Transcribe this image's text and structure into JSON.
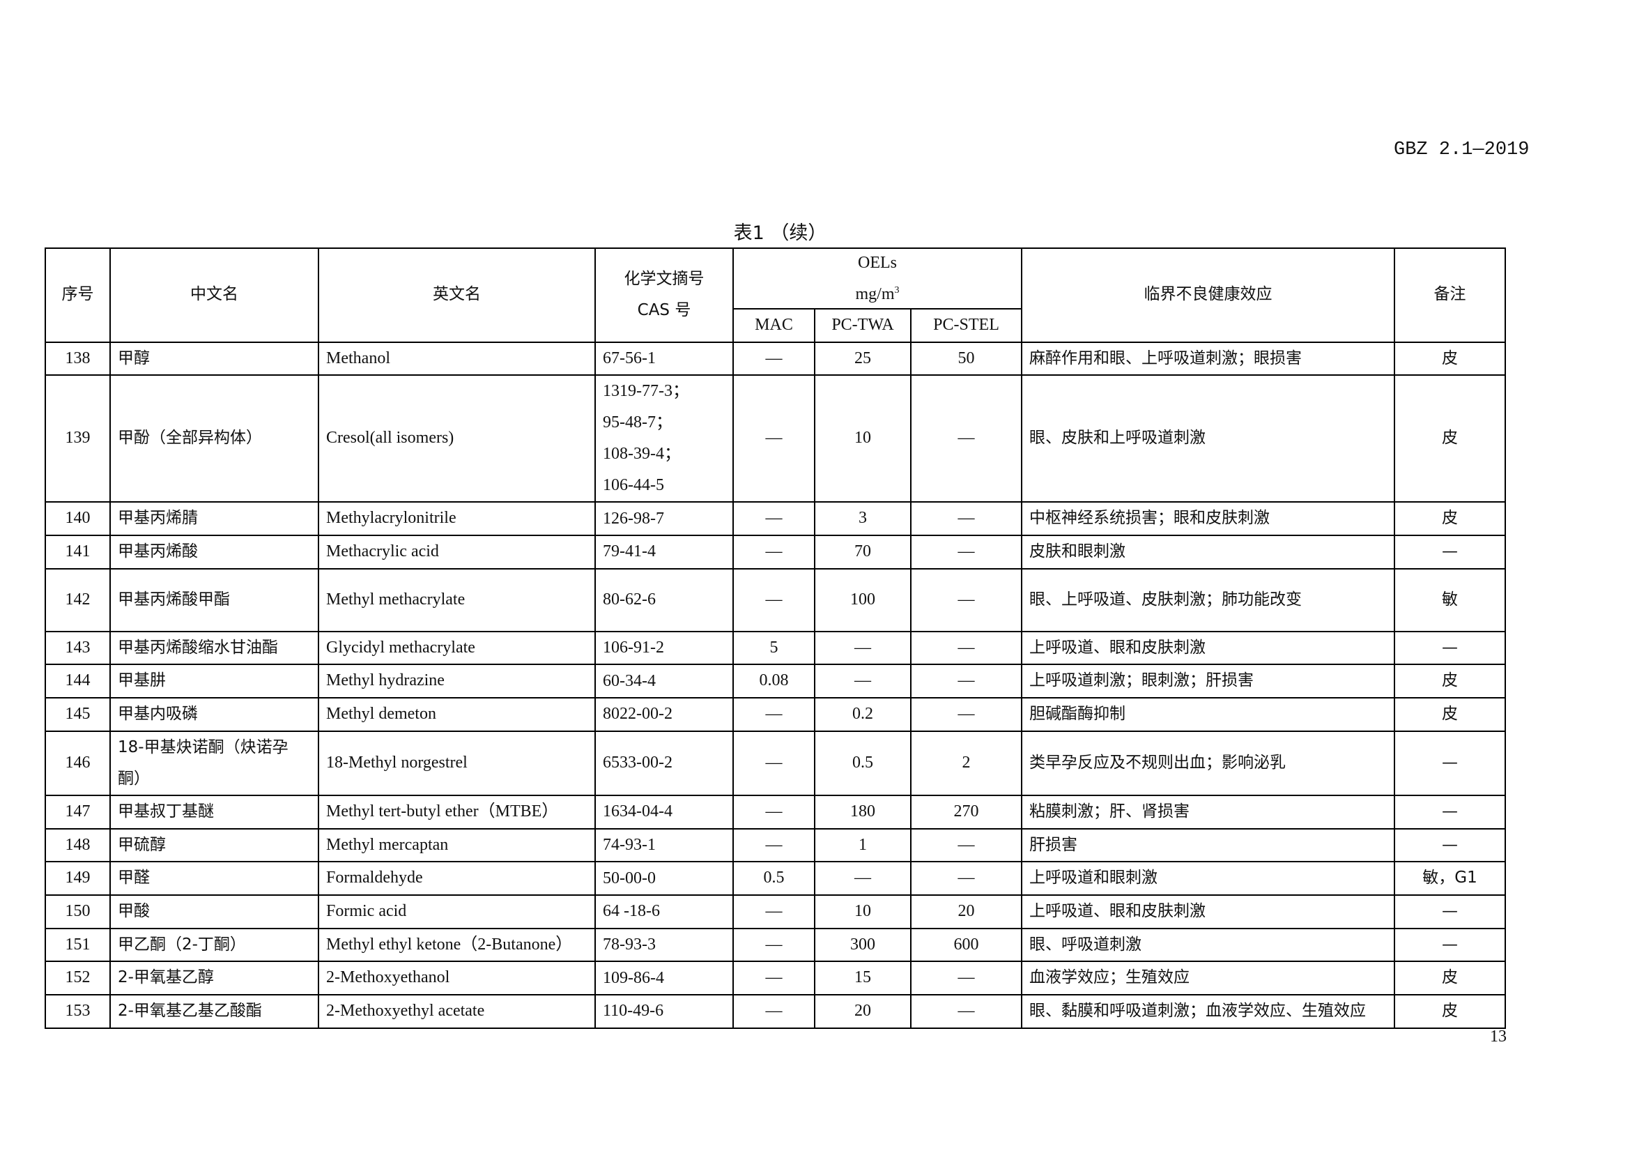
{
  "header": {
    "standard_code": "GBZ 2.1—2019"
  },
  "table_title": "表1 （续）",
  "columns": {
    "seq": "序号",
    "cn_name": "中文名",
    "en_name": "英文名",
    "cas_line1": "化学文摘号",
    "cas_line2": "CAS 号",
    "oels": "OELs",
    "unit_base": "mg/m",
    "unit_exp": "3",
    "mac": "MAC",
    "pc_twa": "PC-TWA",
    "pc_stel": "PC-STEL",
    "effect": "临界不良健康效应",
    "remark": "备注"
  },
  "rows": [
    {
      "seq": "138",
      "cn": "甲醇",
      "en": "Methanol",
      "cas": [
        "67-56-1"
      ],
      "mac": "—",
      "twa": "25",
      "stel": "50",
      "effect": "麻醉作用和眼、上呼吸道刺激；眼损害",
      "remark": "皮"
    },
    {
      "seq": "139",
      "cn": "甲酚（全部异构体）",
      "en": "Cresol(all isomers)",
      "cas": [
        "1319-77-3；",
        "95-48-7；",
        "108-39-4；",
        "106-44-5"
      ],
      "mac": "—",
      "twa": "10",
      "stel": "—",
      "effect": "眼、皮肤和上呼吸道刺激",
      "remark": "皮"
    },
    {
      "seq": "140",
      "cn": "甲基丙烯腈",
      "en": "Methylacrylonitrile",
      "cas": [
        "126-98-7"
      ],
      "mac": "—",
      "twa": "3",
      "stel": "—",
      "effect": "中枢神经系统损害；眼和皮肤刺激",
      "remark": "皮"
    },
    {
      "seq": "141",
      "cn": "甲基丙烯酸",
      "en": "Methacrylic acid",
      "cas": [
        "79-41-4"
      ],
      "mac": "—",
      "twa": "70",
      "stel": "—",
      "effect": "皮肤和眼刺激",
      "remark": "—"
    },
    {
      "seq": "142",
      "cn": "甲基丙烯酸甲酯",
      "en": "Methyl methacrylate",
      "cas": [
        "80-62-6"
      ],
      "mac": "—",
      "twa": "100",
      "stel": "—",
      "effect": "眼、上呼吸道、皮肤刺激；肺功能改变",
      "remark": "敏"
    },
    {
      "seq": "143",
      "cn": "甲基丙烯酸缩水甘油酯",
      "en": "Glycidyl methacrylate",
      "cas": [
        "106-91-2"
      ],
      "mac": "5",
      "twa": "—",
      "stel": "—",
      "effect": "上呼吸道、眼和皮肤刺激",
      "remark": "—"
    },
    {
      "seq": "144",
      "cn": "甲基肼",
      "en": "Methyl hydrazine",
      "cas": [
        "60-34-4"
      ],
      "mac": "0.08",
      "twa": "—",
      "stel": "—",
      "effect": "上呼吸道刺激；眼刺激；肝损害",
      "remark": "皮"
    },
    {
      "seq": "145",
      "cn": "甲基内吸磷",
      "en": "Methyl demeton",
      "cas": [
        "8022-00-2"
      ],
      "mac": "—",
      "twa": "0.2",
      "stel": "—",
      "effect": "胆碱酯酶抑制",
      "remark": "皮"
    },
    {
      "seq": "146",
      "cn": "18-甲基炔诺酮（炔诺孕酮）",
      "en": "18-Methyl norgestrel",
      "cas": [
        "6533-00-2"
      ],
      "mac": "—",
      "twa": "0.5",
      "stel": "2",
      "effect": "类早孕反应及不规则出血；影响泌乳",
      "remark": "—"
    },
    {
      "seq": "147",
      "cn": "甲基叔丁基醚",
      "en": "Methyl tert-butyl ether（MTBE）",
      "cas": [
        "1634-04-4"
      ],
      "mac": "—",
      "twa": "180",
      "stel": "270",
      "effect": "粘膜刺激；肝、肾损害",
      "remark": "—"
    },
    {
      "seq": "148",
      "cn": "甲硫醇",
      "en": "Methyl mercaptan",
      "cas": [
        "74-93-1"
      ],
      "mac": "—",
      "twa": "1",
      "stel": "—",
      "effect": "肝损害",
      "remark": "—"
    },
    {
      "seq": "149",
      "cn": "甲醛",
      "en": "Formaldehyde",
      "cas": [
        "50-00-0"
      ],
      "mac": "0.5",
      "twa": "—",
      "stel": "—",
      "effect": "上呼吸道和眼刺激",
      "remark": "敏，G1"
    },
    {
      "seq": "150",
      "cn": "甲酸",
      "en": "Formic acid",
      "cas": [
        "64 -18-6"
      ],
      "mac": "—",
      "twa": "10",
      "stel": "20",
      "effect": "上呼吸道、眼和皮肤刺激",
      "remark": "—"
    },
    {
      "seq": "151",
      "cn": "甲乙酮（2-丁酮）",
      "en": "Methyl ethyl ketone（2-Butanone）",
      "cas": [
        "78-93-3"
      ],
      "mac": "—",
      "twa": "300",
      "stel": "600",
      "effect": "眼、呼吸道刺激",
      "remark": "—"
    },
    {
      "seq": "152",
      "cn": "2-甲氧基乙醇",
      "en": "2-Methoxyethanol",
      "cas": [
        "109-86-4"
      ],
      "mac": "—",
      "twa": "15",
      "stel": "—",
      "effect": "血液学效应；生殖效应",
      "remark": "皮"
    },
    {
      "seq": "153",
      "cn": "2-甲氧基乙基乙酸酯",
      "en": "2-Methoxyethyl acetate",
      "cas": [
        "110-49-6"
      ],
      "mac": "—",
      "twa": "20",
      "stel": "—",
      "effect": "眼、黏膜和呼吸道刺激；血液学效应、生殖效应",
      "remark": "皮"
    }
  ],
  "page_number": "13"
}
